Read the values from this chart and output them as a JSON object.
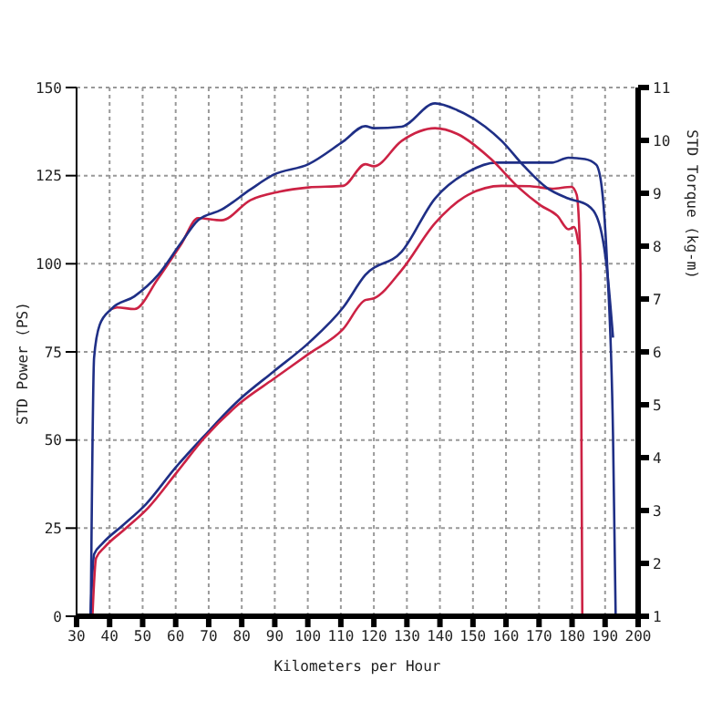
{
  "chart_data": {
    "type": "line",
    "xlabel": "Kilometers per Hour",
    "ylabel": "STD Power (PS)",
    "y2label": "STD Torque (kg-m)",
    "xlim": [
      30,
      200
    ],
    "xticks": [
      30,
      40,
      50,
      60,
      70,
      80,
      90,
      100,
      110,
      120,
      130,
      140,
      150,
      160,
      170,
      180,
      190,
      200
    ],
    "ylim": [
      0,
      150
    ],
    "yticks": [
      0,
      25,
      50,
      75,
      100,
      125,
      150
    ],
    "y2lim": [
      1,
      11
    ],
    "y2ticks": [
      1,
      2,
      3,
      4,
      5,
      6,
      7,
      8,
      9,
      10,
      11
    ],
    "grid": true,
    "line_style": "solid",
    "marker": "none",
    "series": [
      {
        "color": "#1f2f86",
        "x": [
          34.2,
          35.3,
          37.9,
          44,
          51,
          59.8,
          68.6,
          79.1,
          89.6,
          100.2,
          110.7,
          117.4,
          128.4,
          138.5,
          148.6,
          157,
          165.5,
          173.9,
          178.9,
          183.9,
          187.3,
          189,
          190.7,
          192.4,
          193.2
        ],
        "values": [
          0,
          17.6,
          20.7,
          25.8,
          31.8,
          42,
          51.1,
          61.3,
          69.4,
          77.5,
          87.6,
          96.8,
          103.4,
          118.5,
          126.1,
          128.7,
          128.7,
          128.7,
          130.1,
          129.7,
          128.1,
          121.6,
          98.2,
          51.3,
          0
        ]
      },
      {
        "color": "#cc2244",
        "x": [
          34.8,
          35.9,
          38.5,
          44.6,
          51.6,
          60.4,
          68.6,
          79.1,
          89.6,
          100.2,
          110.7,
          117.4,
          120,
          128.4,
          138.5,
          148.6,
          158.7,
          167.2,
          173.9,
          179.8,
          181.4,
          182.6,
          183.1
        ],
        "values": [
          0,
          16.5,
          19.6,
          24.7,
          30.7,
          40.9,
          50.5,
          60.2,
          67.3,
          74.4,
          81.5,
          89.7,
          90.2,
          98.2,
          111.5,
          119.6,
          122.1,
          122,
          121.3,
          121.8,
          119.6,
          97.3,
          0
        ]
      },
      {
        "color": "#cc2244",
        "axis": "y2",
        "x": [
          40.5,
          42.3,
          47.5,
          54.6,
          61.6,
          66.8,
          73.9,
          82.6,
          91.4,
          100.2,
          110.7,
          117.4,
          120,
          128.4,
          138.5,
          145.3,
          155.4,
          163.8,
          170.5,
          175.6,
          178.9,
          180.6,
          182
        ],
        "values": [
          6.81,
          6.84,
          6.81,
          7.38,
          8.03,
          8.53,
          8.49,
          8.87,
          9.03,
          9.11,
          9.14,
          9.55,
          9.51,
          9.99,
          10.23,
          10.12,
          9.65,
          9.11,
          8.77,
          8.57,
          8.32,
          8.36,
          8.03
        ]
      },
      {
        "color": "#1f2f86",
        "axis": "y2",
        "x": [
          34.3,
          35.3,
          37,
          40.5,
          47.5,
          54.6,
          61.6,
          66.8,
          73.9,
          82.6,
          89.6,
          100.2,
          110.7,
          117.4,
          120,
          128.4,
          138.5,
          145.3,
          153.7,
          158.7,
          165.5,
          172.2,
          178.9,
          184.8,
          188.2,
          190.7,
          192.4
        ],
        "values": [
          1,
          5.89,
          6.51,
          6.81,
          7.05,
          7.45,
          8.06,
          8.49,
          8.69,
          9.07,
          9.35,
          9.55,
          9.98,
          10.27,
          10.23,
          10.26,
          10.7,
          10.57,
          10.26,
          9.99,
          9.51,
          9.11,
          8.9,
          8.77,
          8.43,
          7.49,
          6.27
        ]
      }
    ]
  }
}
